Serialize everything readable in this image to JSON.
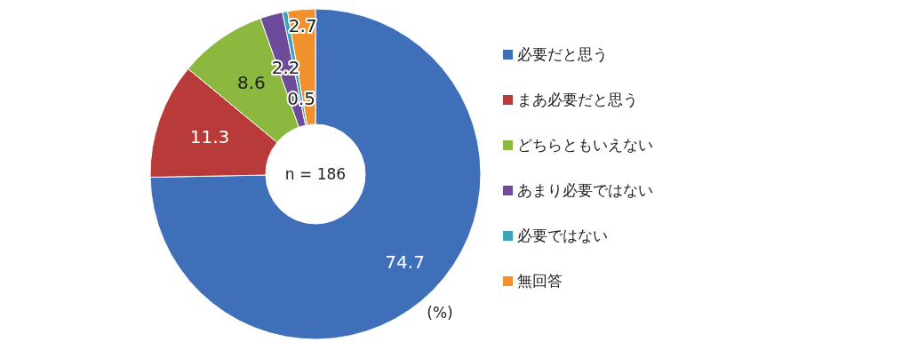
{
  "chart_data": {
    "type": "donut",
    "categories": [
      "必要だと思う",
      "まあ必要だと思う",
      "どちらともいえない",
      "あまり必要ではない",
      "必要ではない",
      "無回答"
    ],
    "values": [
      74.7,
      11.3,
      8.6,
      2.2,
      0.5,
      2.7
    ],
    "colors": [
      "#3f6fb8",
      "#b83b3a",
      "#8cb83f",
      "#6e4a9b",
      "#3aa3bb",
      "#f0912c"
    ],
    "data_labels": true,
    "legend": "right",
    "annotations": [
      "n = 186",
      "(%)"
    ]
  }
}
